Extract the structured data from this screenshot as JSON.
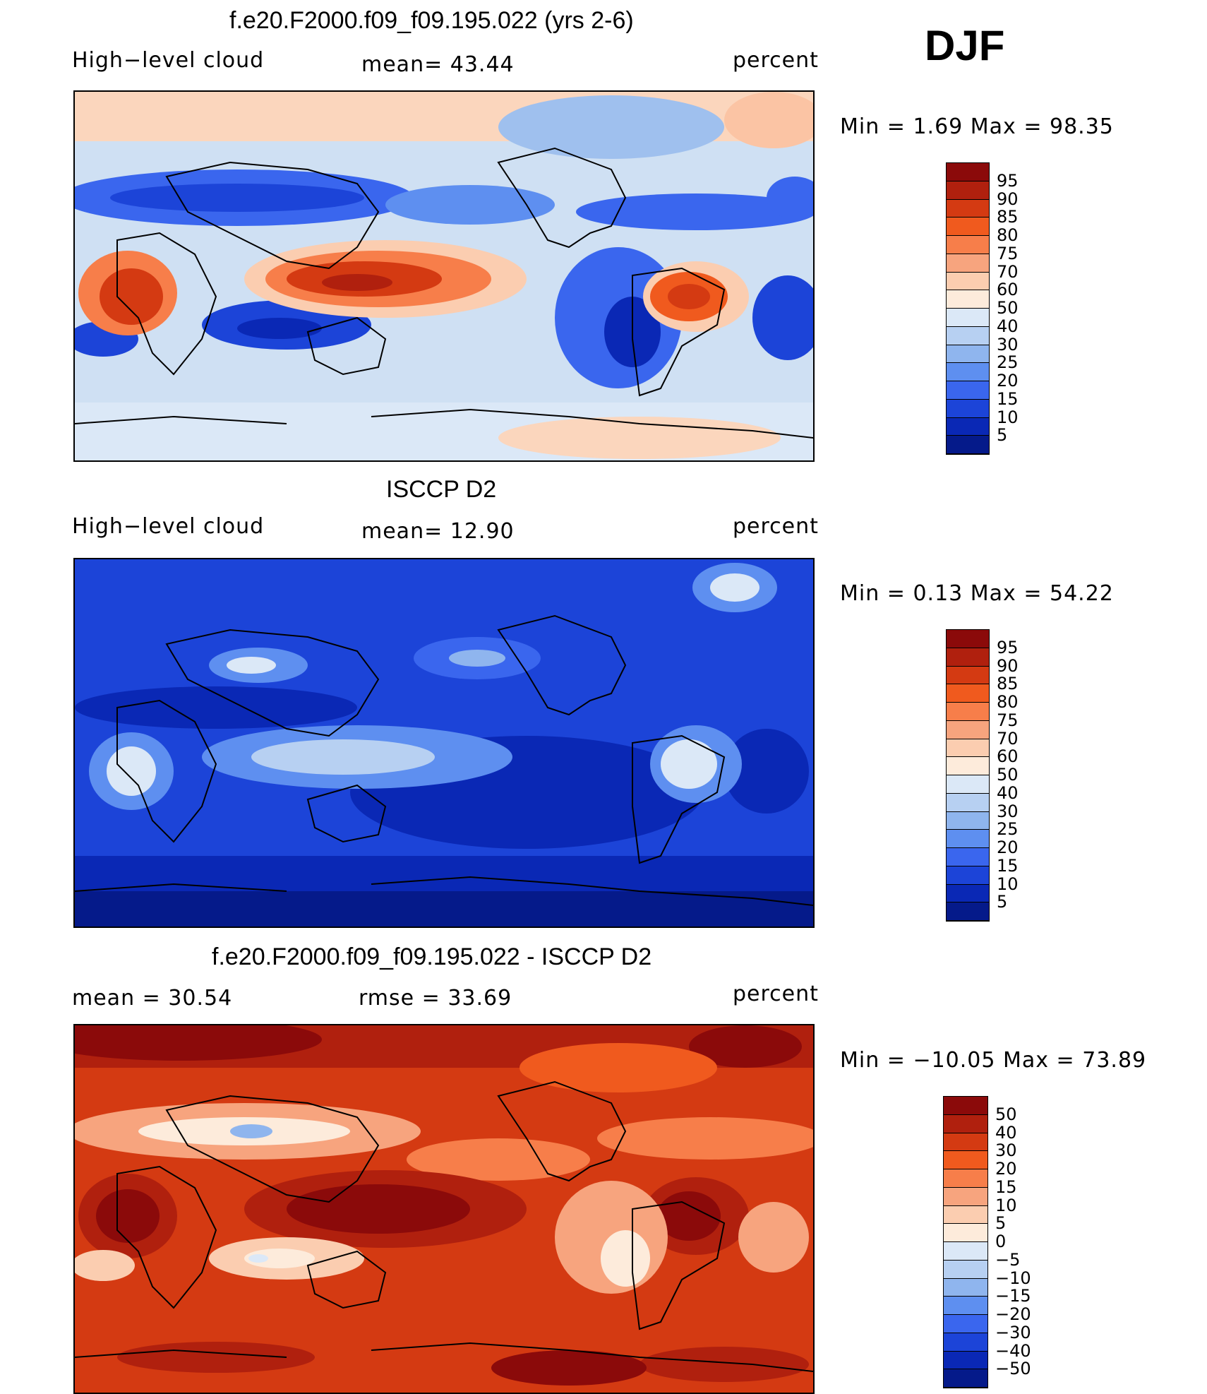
{
  "season": "DJF",
  "panels": [
    {
      "title": "f.e20.F2000.f09_f09.195.022 (yrs 2-6)",
      "left_label": "High−level cloud",
      "center_label": "mean=   43.44",
      "right_label": "percent",
      "minmax": "Min  =     1.69  Max  =    98.35",
      "colorbar": {
        "ticks": [
          "95",
          "90",
          "85",
          "80",
          "75",
          "70",
          "60",
          "50",
          "40",
          "30",
          "25",
          "20",
          "15",
          "10",
          "5"
        ],
        "colors": [
          "#8b0a0a",
          "#b0200e",
          "#d43a12",
          "#f05a1e",
          "#f77e4a",
          "#f7a47e",
          "#fbcdb0",
          "#fdebdb",
          "#dbe8f7",
          "#b7d0f2",
          "#8fb5ee",
          "#5e8ff0",
          "#3a66ee",
          "#1c44d8",
          "#0a28b5",
          "#051a8a"
        ]
      }
    },
    {
      "title": "ISCCP D2",
      "left_label": "High−level cloud",
      "center_label": "mean=   12.90",
      "right_label": "percent",
      "minmax": "Min  =     0.13  Max  =    54.22",
      "colorbar": {
        "ticks": [
          "95",
          "90",
          "85",
          "80",
          "75",
          "70",
          "60",
          "50",
          "40",
          "30",
          "25",
          "20",
          "15",
          "10",
          "5"
        ],
        "colors": [
          "#8b0a0a",
          "#b0200e",
          "#d43a12",
          "#f05a1e",
          "#f77e4a",
          "#f7a47e",
          "#fbcdb0",
          "#fdebdb",
          "#dbe8f7",
          "#b7d0f2",
          "#8fb5ee",
          "#5e8ff0",
          "#3a66ee",
          "#1c44d8",
          "#0a28b5",
          "#051a8a"
        ]
      }
    },
    {
      "title": "f.e20.F2000.f09_f09.195.022 - ISCCP D2",
      "left_label": "mean  =    30.54",
      "center_label": "rmse  =    33.69",
      "right_label": "percent",
      "minmax": "Min  = −10.05  Max  =     73.89",
      "colorbar": {
        "ticks": [
          "50",
          "40",
          "30",
          "20",
          "15",
          "10",
          "5",
          "0",
          "−5",
          "−10",
          "−15",
          "−20",
          "−30",
          "−40",
          "−50"
        ],
        "colors": [
          "#8b0a0a",
          "#b0200e",
          "#d43a12",
          "#f05a1e",
          "#f77e4a",
          "#f7a47e",
          "#fbcdb0",
          "#fdebdb",
          "#dbe8f7",
          "#b7d0f2",
          "#8fb5ee",
          "#5e8ff0",
          "#3a66ee",
          "#1c44d8",
          "#0a28b5",
          "#051a8a"
        ]
      }
    }
  ]
}
